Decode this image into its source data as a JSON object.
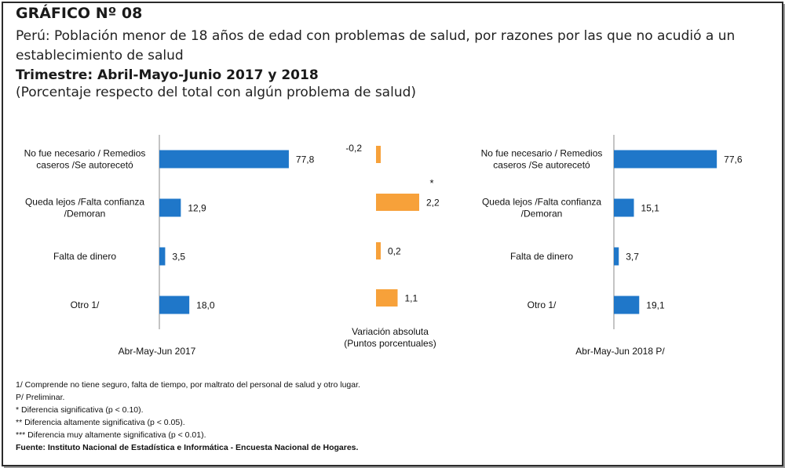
{
  "header": {
    "figure_number": "GRÁFICO Nº 08",
    "subtitle": "Perú: Población menor de 18 años de edad con problemas de salud, por razones por las que no acudió a un establecimiento de salud",
    "period": "Trimestre: Abril-Mayo-Junio 2017 y 2018",
    "units": "(Porcentaje respecto del total con algún problema de salud)"
  },
  "colors": {
    "bar_2017": "#1f77c9",
    "bar_2018": "#1f77c9",
    "bar_variation": "#f7a13a",
    "axis": "#8a8a8a"
  },
  "chart_data": [
    {
      "type": "bar",
      "orientation": "horizontal",
      "categories": [
        [
          "No fue necesario / Remedios",
          "caseros /Se autorecetó"
        ],
        [
          "Queda lejos /Falta confianza",
          "/Demoran"
        ],
        [
          "Falta de dinero"
        ],
        [
          "Otro 1/"
        ]
      ],
      "values": [
        77.8,
        12.9,
        3.5,
        18.0
      ],
      "labels": [
        "77,8",
        "12,9",
        "3,5",
        "18,0"
      ],
      "xlabel": "Abr-May-Jun 2017",
      "xlim": [
        0,
        100
      ]
    },
    {
      "type": "bar",
      "orientation": "horizontal",
      "values": [
        -0.2,
        2.2,
        0.2,
        1.1
      ],
      "labels": [
        "-0,2",
        "2,2",
        "0,2",
        "1,1"
      ],
      "markers": [
        "",
        "*",
        "",
        ""
      ],
      "xlabel": [
        "Variación absoluta",
        "(Puntos porcentuales)"
      ]
    },
    {
      "type": "bar",
      "orientation": "horizontal",
      "categories": [
        [
          "No fue necesario / Remedios",
          "caseros /Se autorecetó"
        ],
        [
          "Queda lejos /Falta confianza",
          "/Demoran"
        ],
        [
          "Falta de dinero"
        ],
        [
          "Otro 1/"
        ]
      ],
      "values": [
        77.6,
        15.1,
        3.7,
        19.1
      ],
      "labels": [
        "77,6",
        "15,1",
        "3,7",
        "19,1"
      ],
      "xlabel": "Abr-May-Jun 2018  P/",
      "xlim": [
        0,
        100
      ]
    }
  ],
  "notes": [
    "1/ Comprende no tiene seguro, falta de tiempo, por maltrato del personal de salud y otro lugar.",
    "P/ Preliminar.",
    "* Diferencia significativa (p < 0.10).",
    "** Diferencia altamente significativa (p < 0.05).",
    "*** Diferencia muy altamente significativa (p < 0.01)."
  ],
  "source": "Fuente: Instituto Nacional de Estadística e Informática - Encuesta Nacional de Hogares."
}
